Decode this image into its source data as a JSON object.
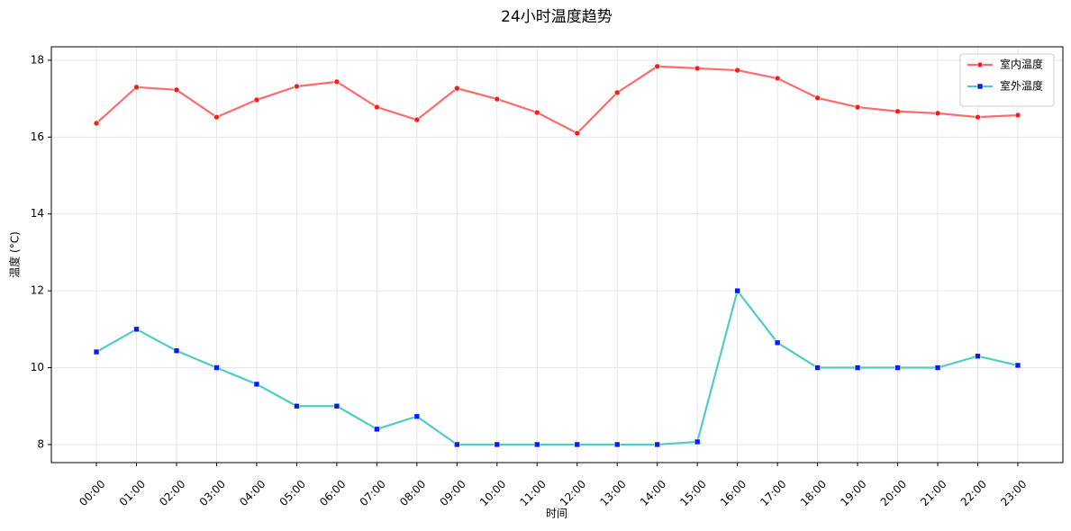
{
  "chart_data": {
    "type": "line",
    "title": "24小时温度趋势",
    "x_label": "时间",
    "y_label": "温度 (°C)",
    "categories": [
      "00:00",
      "01:00",
      "02:00",
      "03:00",
      "04:00",
      "05:00",
      "06:00",
      "07:00",
      "08:00",
      "09:00",
      "10:00",
      "11:00",
      "12:00",
      "13:00",
      "14:00",
      "15:00",
      "16:00",
      "17:00",
      "18:00",
      "19:00",
      "20:00",
      "21:00",
      "22:00",
      "23:00"
    ],
    "series": [
      {
        "name": "室内温度",
        "color": "#ff6b6b",
        "marker_color": "#ff1a1a",
        "marker": "circle",
        "values": [
          16.36,
          17.3,
          17.23,
          16.52,
          16.97,
          17.32,
          17.44,
          16.78,
          16.45,
          17.27,
          16.99,
          16.64,
          16.1,
          17.16,
          17.84,
          17.79,
          17.74,
          17.53,
          17.02,
          16.78,
          16.67,
          16.62,
          16.52,
          16.57
        ]
      },
      {
        "name": "室外温度",
        "color": "#4ecdc4",
        "marker_color": "#0a1aff",
        "marker": "square",
        "values": [
          10.41,
          11.0,
          10.44,
          10.0,
          9.57,
          9.0,
          9.0,
          8.4,
          8.73,
          8.0,
          8.0,
          8.0,
          8.0,
          8.0,
          8.0,
          8.07,
          12.0,
          10.65,
          10.0,
          10.0,
          10.0,
          10.0,
          10.3,
          10.06
        ]
      }
    ],
    "ylim": [
      7.53,
      18.35
    ],
    "yticks": [
      8,
      10,
      12,
      14,
      16,
      18
    ],
    "grid": true,
    "legend": "upper-right"
  }
}
